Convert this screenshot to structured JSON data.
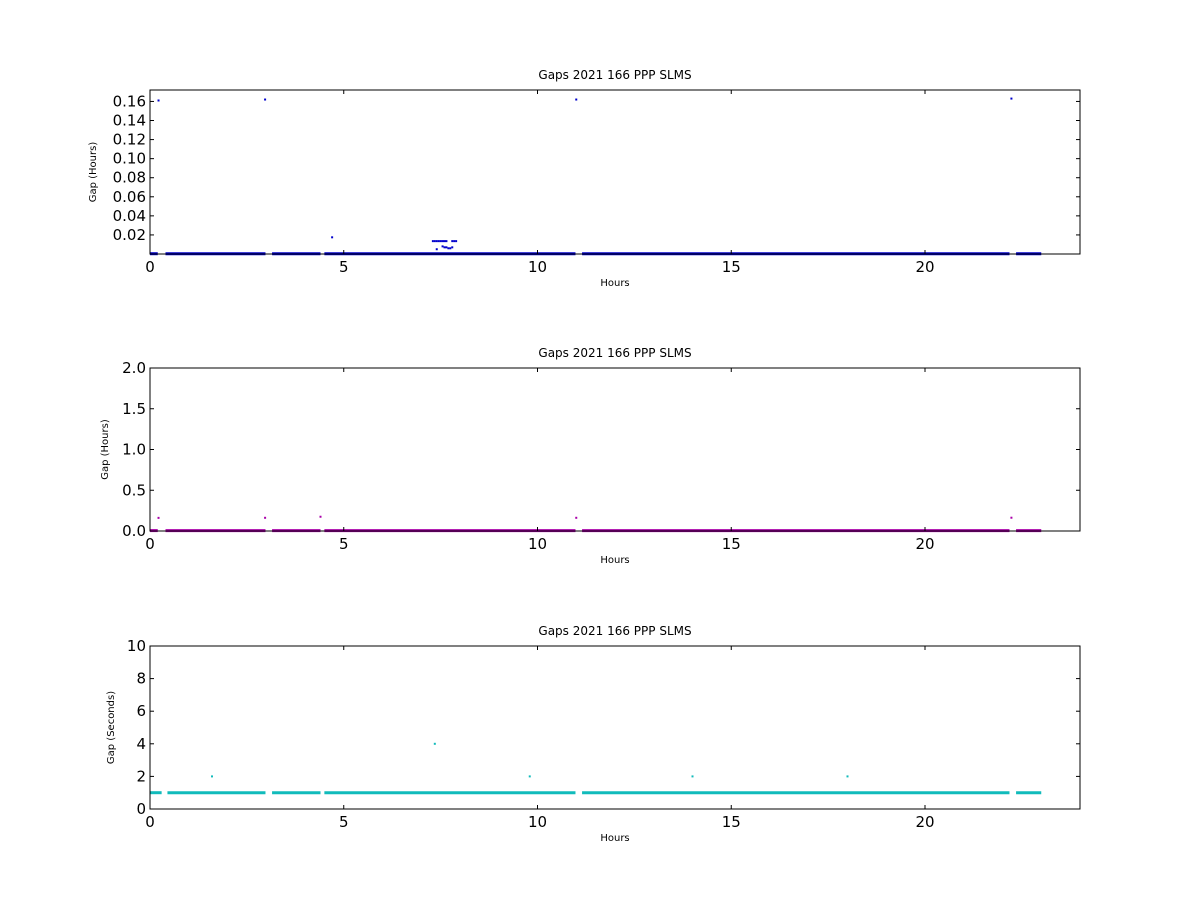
{
  "chart_data": [
    {
      "type": "scatter",
      "title": "Gaps 2021 166 PPP  SLMS",
      "xlabel": "Hours",
      "ylabel": "Gap (Hours)",
      "xlim": [
        0,
        24
      ],
      "ylim": [
        0,
        0.172
      ],
      "x_ticks": [
        0,
        5,
        10,
        15,
        20
      ],
      "y_ticks": [
        0.02,
        0.04,
        0.06,
        0.08,
        0.1,
        0.12,
        0.14,
        0.16
      ],
      "y_tick_labels": [
        "0.02",
        "0.04",
        "0.06",
        "0.08",
        "0.10",
        "0.12",
        "0.14",
        "0.16"
      ],
      "grid": false,
      "color": "#0000cc",
      "baseline_segments": [
        [
          0.0,
          0.2
        ],
        [
          0.4,
          2.98
        ],
        [
          3.15,
          4.4
        ],
        [
          4.5,
          10.98
        ],
        [
          11.15,
          22.18
        ],
        [
          22.35,
          23.0
        ]
      ],
      "baseline_value": 0.0003,
      "series": [
        {
          "x": [
            0.22,
            2.97,
            4.7,
            7.3,
            7.35,
            7.4,
            7.45,
            7.5,
            7.55,
            7.6,
            7.65,
            7.4,
            7.55,
            7.6,
            7.65,
            7.7,
            7.75,
            7.8,
            7.8,
            7.85,
            7.9,
            11.0,
            22.23
          ],
          "y": [
            0.161,
            0.162,
            0.0175,
            0.0135,
            0.0135,
            0.0135,
            0.0135,
            0.0135,
            0.0135,
            0.0135,
            0.0135,
            0.005,
            0.008,
            0.007,
            0.007,
            0.006,
            0.006,
            0.007,
            0.0135,
            0.0135,
            0.0135,
            0.162,
            0.163
          ]
        }
      ]
    },
    {
      "type": "scatter",
      "title": "Gaps 2021 166 PPP  SLMS",
      "xlabel": "Hours",
      "ylabel": "Gap (Hours)",
      "xlim": [
        0,
        24
      ],
      "ylim": [
        0,
        2.0
      ],
      "x_ticks": [
        0,
        5,
        10,
        15,
        20
      ],
      "y_ticks": [
        0.0,
        0.5,
        1.0,
        1.5,
        2.0
      ],
      "y_tick_labels": [
        "0.0",
        "0.5",
        "1.0",
        "1.5",
        "2.0"
      ],
      "grid": false,
      "color": "#aa00aa",
      "baseline_segments": [
        [
          0.0,
          0.2
        ],
        [
          0.4,
          2.98
        ],
        [
          3.15,
          4.4
        ],
        [
          4.5,
          10.98
        ],
        [
          11.15,
          22.18
        ],
        [
          22.35,
          23.0
        ]
      ],
      "baseline_value": 0.005,
      "series": [
        {
          "x": [
            0.22,
            2.97,
            4.4,
            11.0,
            22.23
          ],
          "y": [
            0.161,
            0.162,
            0.175,
            0.162,
            0.163
          ]
        }
      ]
    },
    {
      "type": "scatter",
      "title": "Gaps 2021 166 PPP  SLMS",
      "xlabel": "Hours",
      "ylabel": "Gap (Seconds)",
      "xlim": [
        0,
        24
      ],
      "ylim": [
        0,
        10
      ],
      "x_ticks": [
        0,
        5,
        10,
        15,
        20
      ],
      "y_ticks": [
        0,
        2,
        4,
        6,
        8,
        10
      ],
      "y_tick_labels": [
        "0",
        "2",
        "4",
        "6",
        "8",
        "10"
      ],
      "grid": false,
      "color": "#11bbbb",
      "baseline_segments": [
        [
          0.0,
          0.3
        ],
        [
          0.45,
          2.98
        ],
        [
          3.15,
          4.4
        ],
        [
          4.5,
          10.98
        ],
        [
          11.15,
          22.18
        ],
        [
          22.35,
          23.0
        ]
      ],
      "baseline_value": 1.0,
      "series": [
        {
          "x": [
            1.6,
            7.35,
            9.8,
            14.0,
            18.0
          ],
          "y": [
            2.0,
            4.0,
            2.0,
            2.0,
            2.0
          ]
        }
      ]
    }
  ]
}
